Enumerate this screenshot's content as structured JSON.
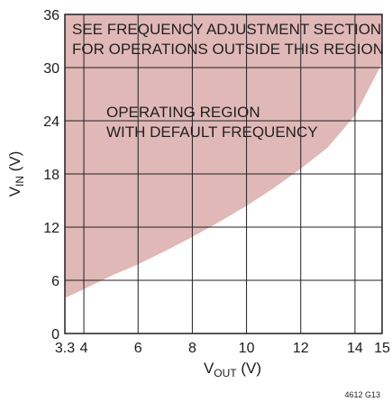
{
  "chart_data": {
    "type": "area",
    "title": "",
    "xlabel": {
      "base": "V",
      "sub": "OUT",
      "unit": " (V)"
    },
    "ylabel": {
      "base": "V",
      "sub": "IN",
      "unit": " (V)"
    },
    "xlim": [
      3.3,
      15
    ],
    "ylim": [
      0,
      36
    ],
    "x_ticks": [
      3.3,
      4,
      6,
      8,
      10,
      12,
      14,
      15
    ],
    "x_tick_labels": [
      "3.3",
      "4",
      "6",
      "8",
      "10",
      "12",
      "14",
      "15"
    ],
    "y_ticks": [
      0,
      6,
      12,
      18,
      24,
      30,
      36
    ],
    "y_tick_labels": [
      "0",
      "6",
      "12",
      "18",
      "24",
      "30",
      "36"
    ],
    "grid": true,
    "boundary_curve": {
      "x": [
        3.3,
        4,
        5,
        6,
        7,
        8,
        9,
        10,
        11,
        12,
        13,
        14,
        15
      ],
      "y": [
        4.0,
        5.0,
        6.5,
        7.8,
        9.3,
        10.9,
        12.6,
        14.4,
        16.4,
        18.6,
        21.0,
        24.6,
        30.5
      ]
    },
    "shaded_region": "above boundary curve",
    "annotations": [
      {
        "lines": [
          "SEE FREQUENCY ADJUSTMENT SECTION",
          "FOR OPERATIONS OUTSIDE THIS REGION"
        ],
        "anchor": "top"
      },
      {
        "lines": [
          "OPERATING REGION",
          "WITH DEFAULT FREQUENCY"
        ],
        "anchor": "middle"
      }
    ],
    "colors": {
      "region_fill": "#dfb8b7",
      "grid": "#231f20",
      "text": "#231f20"
    }
  },
  "figure_id": "4612 G13"
}
